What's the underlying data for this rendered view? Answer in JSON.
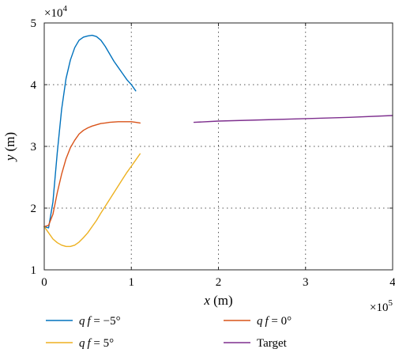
{
  "chart_data": {
    "type": "line",
    "title": "",
    "xlabel": "x (m)",
    "ylabel": "y (m)",
    "x_multiplier": "×10^5",
    "y_multiplier": "×10^4",
    "xlim": [
      0,
      4
    ],
    "ylim": [
      1,
      5
    ],
    "x_ticks": [
      0,
      1,
      2,
      3,
      4
    ],
    "y_ticks": [
      1,
      2,
      3,
      4,
      5
    ],
    "grid": "dotted",
    "legend_position": "below",
    "series": [
      {
        "name": "qf = −5°",
        "color": "#0072BD",
        "x": [
          0,
          0.05,
          0.1,
          0.15,
          0.2,
          0.25,
          0.3,
          0.35,
          0.4,
          0.45,
          0.5,
          0.55,
          0.6,
          0.65,
          0.7,
          0.75,
          0.8,
          0.85,
          0.9,
          0.95,
          1.0,
          1.05
        ],
        "y": [
          1.7,
          1.68,
          2.1,
          2.9,
          3.6,
          4.1,
          4.4,
          4.6,
          4.72,
          4.77,
          4.79,
          4.8,
          4.78,
          4.72,
          4.62,
          4.5,
          4.38,
          4.28,
          4.18,
          4.08,
          4.0,
          3.9
        ]
      },
      {
        "name": "qf = 0°",
        "color": "#D95319",
        "x": [
          0,
          0.05,
          0.1,
          0.15,
          0.2,
          0.25,
          0.3,
          0.35,
          0.4,
          0.45,
          0.5,
          0.55,
          0.6,
          0.65,
          0.7,
          0.75,
          0.8,
          0.85,
          0.9,
          0.95,
          1.0,
          1.05,
          1.1
        ],
        "y": [
          1.7,
          1.72,
          1.9,
          2.25,
          2.55,
          2.8,
          2.98,
          3.1,
          3.2,
          3.26,
          3.3,
          3.33,
          3.35,
          3.37,
          3.38,
          3.39,
          3.395,
          3.4,
          3.4,
          3.4,
          3.4,
          3.39,
          3.38
        ]
      },
      {
        "name": "qf = 5°",
        "color": "#EDB120",
        "x": [
          0,
          0.05,
          0.1,
          0.15,
          0.2,
          0.25,
          0.3,
          0.35,
          0.4,
          0.45,
          0.5,
          0.55,
          0.6,
          0.65,
          0.7,
          0.75,
          0.8,
          0.85,
          0.9,
          0.95,
          1.0,
          1.05,
          1.1
        ],
        "y": [
          1.7,
          1.6,
          1.5,
          1.44,
          1.4,
          1.38,
          1.38,
          1.4,
          1.45,
          1.52,
          1.6,
          1.7,
          1.8,
          1.92,
          2.03,
          2.14,
          2.25,
          2.36,
          2.47,
          2.58,
          2.68,
          2.78,
          2.88
        ]
      },
      {
        "name": "Target",
        "color": "#7E2F8E",
        "x": [
          1.72,
          2.0,
          2.5,
          3.0,
          3.5,
          4.0
        ],
        "y": [
          3.39,
          3.41,
          3.43,
          3.45,
          3.47,
          3.5
        ]
      }
    ]
  }
}
